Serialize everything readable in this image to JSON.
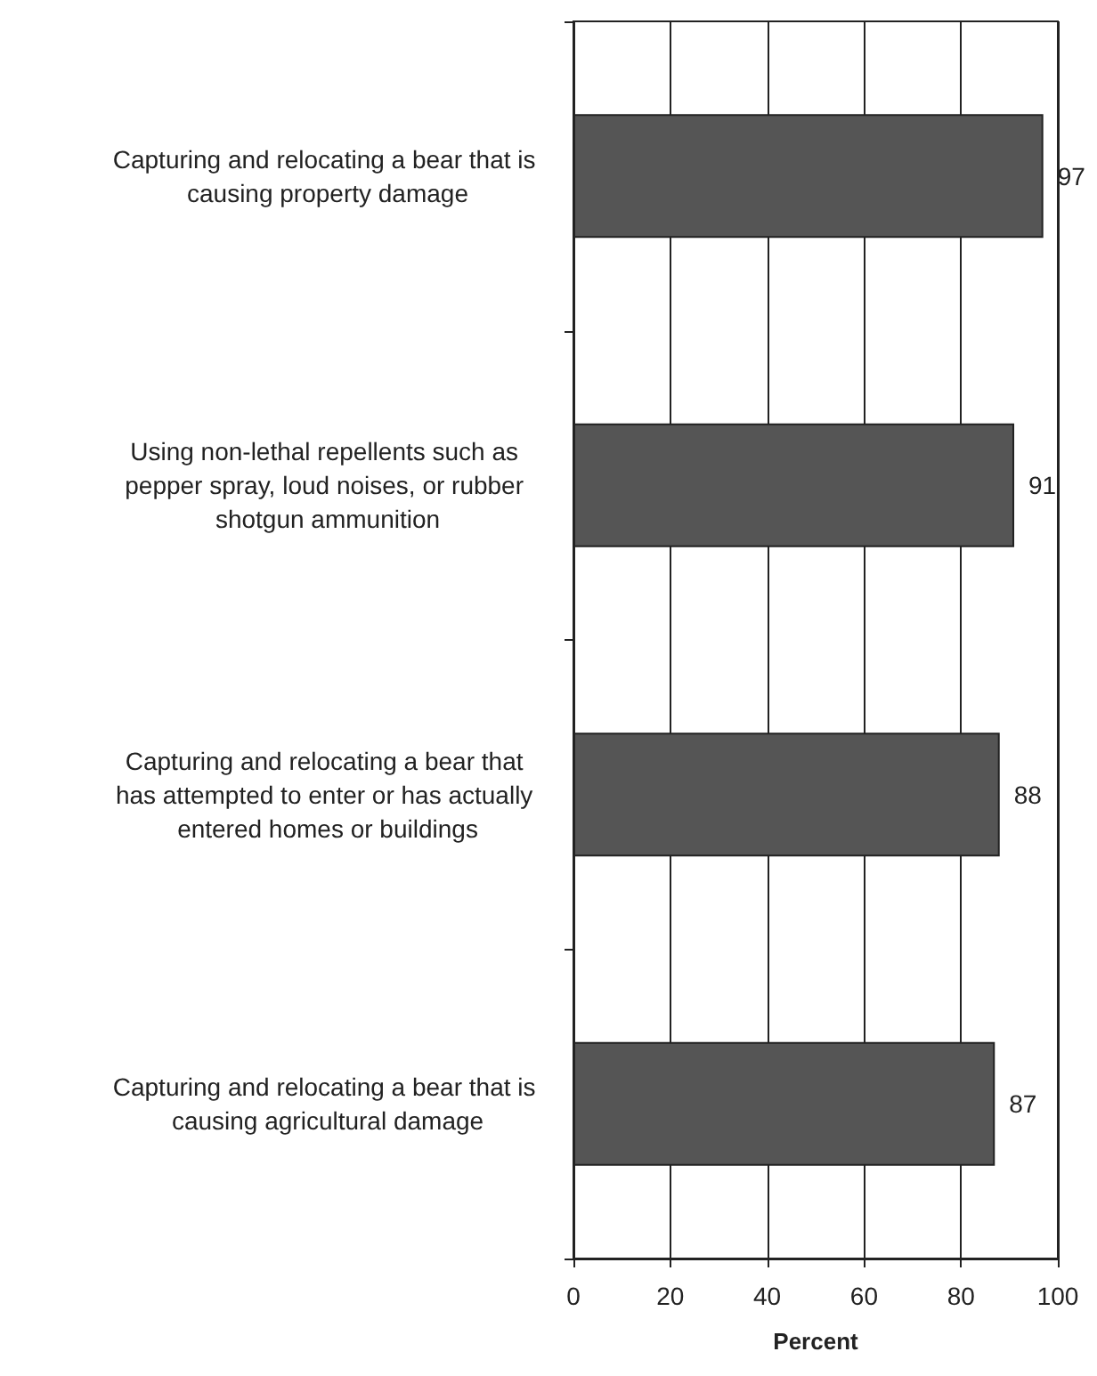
{
  "chart_data": {
    "type": "bar",
    "orientation": "horizontal",
    "xlabel": "Percent",
    "categories": [
      "Capturing and relocating a bear that is causing property damage",
      "Using non-lethal repellents such as pepper spray, loud noises, or rubber shotgun ammunition",
      "Capturing and relocating a bear that has attempted to enter or has actually entered homes or buildings",
      "Capturing and relocating a bear that is causing agricultural damage"
    ],
    "values": [
      97,
      91,
      88,
      87
    ],
    "color": "#555555",
    "xlim": [
      0,
      100
    ],
    "xticks": [
      0,
      20,
      40,
      60,
      80,
      100
    ],
    "grid": "x",
    "data_labels": true
  }
}
